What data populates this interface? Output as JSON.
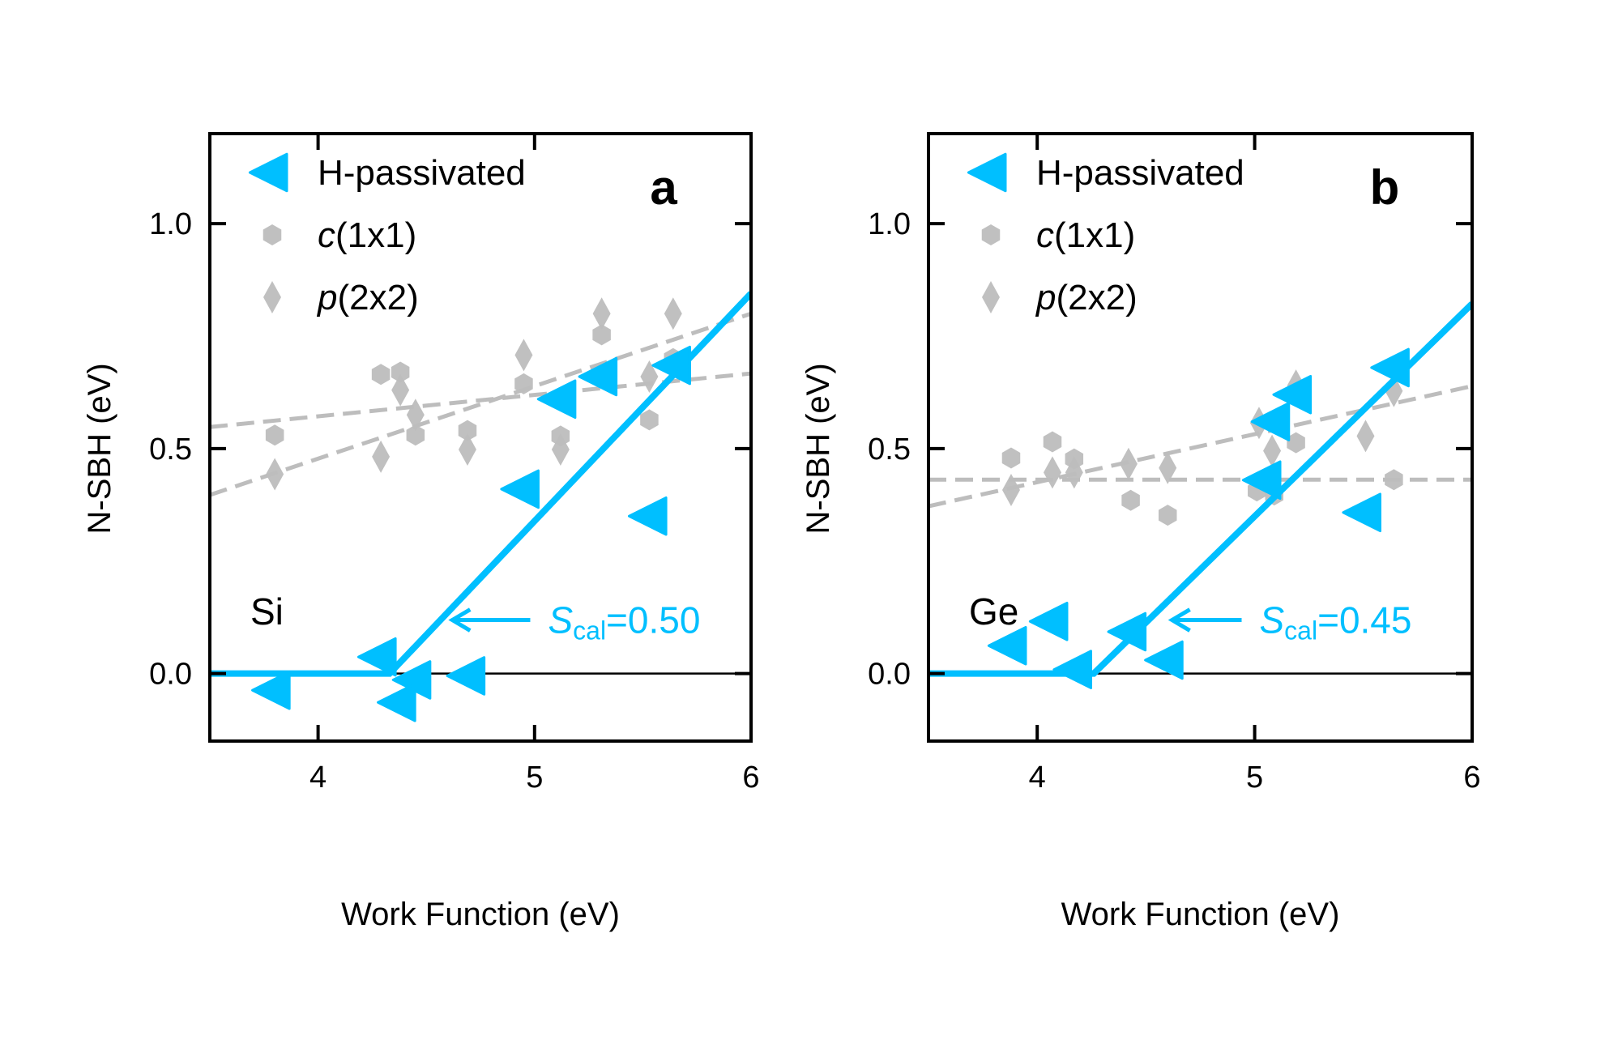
{
  "colors": {
    "h_passivated": "#00BFFF",
    "reconstructed": "#BDBDBD",
    "axis": "#000000"
  },
  "chart_data": [
    {
      "type": "scatter",
      "panel_label": "a",
      "material": "Si",
      "xlabel": "Work Function (eV)",
      "ylabel": "N-SBH (eV)",
      "xlim": [
        3.5,
        6
      ],
      "ylim": [
        -0.15,
        1.2
      ],
      "xticks": [
        4,
        5,
        6
      ],
      "xtick_labels": [
        "4",
        "5",
        "6"
      ],
      "yticks": [
        0.0,
        0.5,
        1.0
      ],
      "ytick_labels": [
        "0.0",
        "0.5",
        "1.0"
      ],
      "grid": false,
      "legend_position": "top-left",
      "series": [
        {
          "name": "H-passivated",
          "marker": "triangle-left",
          "x": [
            3.8,
            4.29,
            4.45,
            4.38,
            4.7,
            4.95,
            5.12,
            5.31,
            5.54,
            5.65
          ],
          "y": [
            -0.037,
            0.037,
            -0.014,
            -0.064,
            -0.005,
            0.41,
            0.61,
            0.66,
            0.35,
            0.685
          ]
        },
        {
          "name": "c(1x1)",
          "name_italic": "c",
          "name_rest": "(1x1)",
          "marker": "hexagon",
          "x": [
            3.8,
            4.29,
            4.38,
            4.45,
            4.69,
            4.95,
            5.12,
            5.31,
            5.53,
            5.64
          ],
          "y": [
            0.53,
            0.665,
            0.67,
            0.53,
            0.54,
            0.644,
            0.528,
            0.753,
            0.564,
            0.7
          ]
        },
        {
          "name": "p(2x2)",
          "name_italic": "p",
          "name_rest": "(2x2)",
          "marker": "diamond",
          "x": [
            3.8,
            4.29,
            4.38,
            4.45,
            4.69,
            4.95,
            5.12,
            5.31,
            5.53,
            5.64
          ],
          "y": [
            0.443,
            0.482,
            0.63,
            0.575,
            0.498,
            0.708,
            0.498,
            0.8,
            0.66,
            0.8
          ]
        }
      ],
      "fit_lines": [
        {
          "series": "H-passivated",
          "style": "solid",
          "x": [
            3.5,
            4.33,
            6.0
          ],
          "y": [
            0.0,
            0.0,
            0.845
          ]
        },
        {
          "series": "c(1x1)",
          "style": "dashed",
          "x": [
            3.5,
            6.0
          ],
          "y": [
            0.548,
            0.667
          ]
        },
        {
          "series": "p(2x2)",
          "style": "dashed",
          "x": [
            3.5,
            6.0
          ],
          "y": [
            0.397,
            0.8
          ]
        }
      ],
      "annotation": {
        "symbol": "S",
        "subscript": "cal",
        "value_text": "=0.50",
        "arrow_from": [
          4.98,
          0.119
        ],
        "arrow_to": [
          4.62,
          0.119
        ]
      }
    },
    {
      "type": "scatter",
      "panel_label": "b",
      "material": "Ge",
      "xlabel": "Work Function (eV)",
      "ylabel": "N-SBH (eV)",
      "xlim": [
        3.5,
        6
      ],
      "ylim": [
        -0.15,
        1.2
      ],
      "xticks": [
        4,
        5,
        6
      ],
      "xtick_labels": [
        "4",
        "5",
        "6"
      ],
      "yticks": [
        0.0,
        0.5,
        1.0
      ],
      "ytick_labels": [
        "0.0",
        "0.5",
        "1.0"
      ],
      "grid": false,
      "legend_position": "top-left",
      "series": [
        {
          "name": "H-passivated",
          "marker": "triangle-left",
          "x": [
            3.88,
            4.07,
            4.18,
            4.43,
            4.6,
            5.05,
            5.09,
            5.19,
            5.51,
            5.64
          ],
          "y": [
            0.062,
            0.116,
            0.009,
            0.093,
            0.03,
            0.43,
            0.56,
            0.62,
            0.358,
            0.68
          ]
        },
        {
          "name": "c(1x1)",
          "name_italic": "c",
          "name_rest": "(1x1)",
          "marker": "hexagon",
          "x": [
            3.88,
            4.07,
            4.17,
            4.43,
            4.6,
            5.01,
            5.09,
            5.19,
            5.64
          ],
          "y": [
            0.479,
            0.515,
            0.477,
            0.385,
            0.352,
            0.406,
            0.397,
            0.513,
            0.431
          ]
        },
        {
          "name": "p(2x2)",
          "name_italic": "p",
          "name_rest": "(2x2)",
          "marker": "diamond",
          "x": [
            3.88,
            4.07,
            4.17,
            4.42,
            4.6,
            5.02,
            5.08,
            5.19,
            5.51,
            5.64
          ],
          "y": [
            0.408,
            0.447,
            0.447,
            0.466,
            0.457,
            0.557,
            0.495,
            0.64,
            0.528,
            0.628
          ]
        }
      ],
      "fit_lines": [
        {
          "series": "H-passivated",
          "style": "solid",
          "x": [
            3.5,
            4.26,
            6.0
          ],
          "y": [
            0.0,
            0.0,
            0.822
          ]
        },
        {
          "series": "c(1x1)",
          "style": "dashed",
          "x": [
            3.5,
            6.0
          ],
          "y": [
            0.431,
            0.431
          ]
        },
        {
          "series": "p(2x2)",
          "style": "dashed",
          "x": [
            3.5,
            6.0
          ],
          "y": [
            0.372,
            0.639
          ]
        }
      ],
      "annotation": {
        "symbol": "S",
        "subscript": "cal",
        "value_text": "=0.45",
        "arrow_from": [
          4.94,
          0.119
        ],
        "arrow_to": [
          4.62,
          0.119
        ]
      }
    }
  ]
}
